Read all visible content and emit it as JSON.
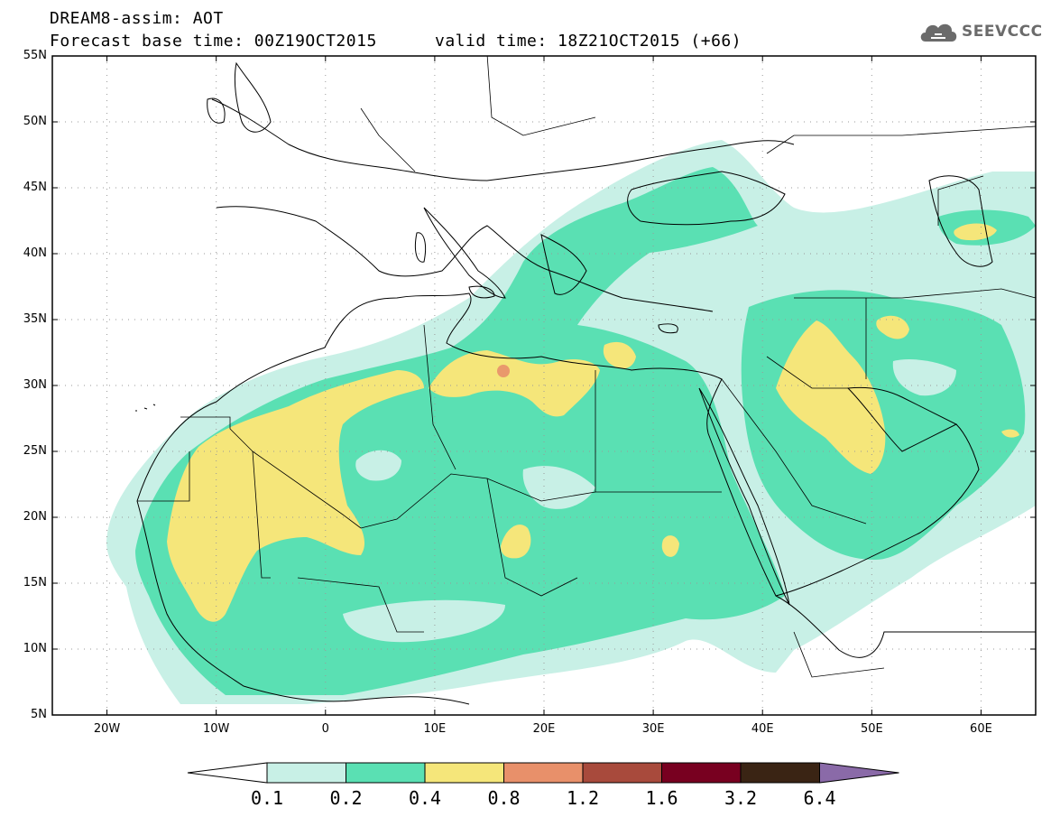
{
  "header": {
    "model_line": "DREAM8-assim: AOT",
    "base_time_line": "Forecast base time: 00Z19OCT2015",
    "valid_time_line": "valid time: 18Z21OCT2015 (+66)",
    "logo_text": "SEEVCCC",
    "logo_icon": "cloud-logo-icon"
  },
  "map": {
    "region": "Northern Africa, Middle East and Europe",
    "lon_range": [
      -25,
      65
    ],
    "lat_range": [
      5,
      55
    ],
    "lat_labels": [
      "55N",
      "50N",
      "45N",
      "40N",
      "35N",
      "30N",
      "25N",
      "20N",
      "15N",
      "10N",
      "5N"
    ],
    "lon_labels": [
      "20W",
      "10W",
      "0",
      "10E",
      "20E",
      "30E",
      "40E",
      "50E",
      "60E"
    ],
    "gridlines": "dotted"
  },
  "legend": {
    "levels": [
      "0.1",
      "0.2",
      "0.4",
      "0.8",
      "1.2",
      "1.6",
      "3.2",
      "6.4"
    ],
    "colors": [
      "#ffffff",
      "#c8f0e6",
      "#5ae0b3",
      "#f5e67a",
      "#e8906a",
      "#a84a3c",
      "#780020",
      "#3a2414",
      "#8a6aa8"
    ]
  }
}
